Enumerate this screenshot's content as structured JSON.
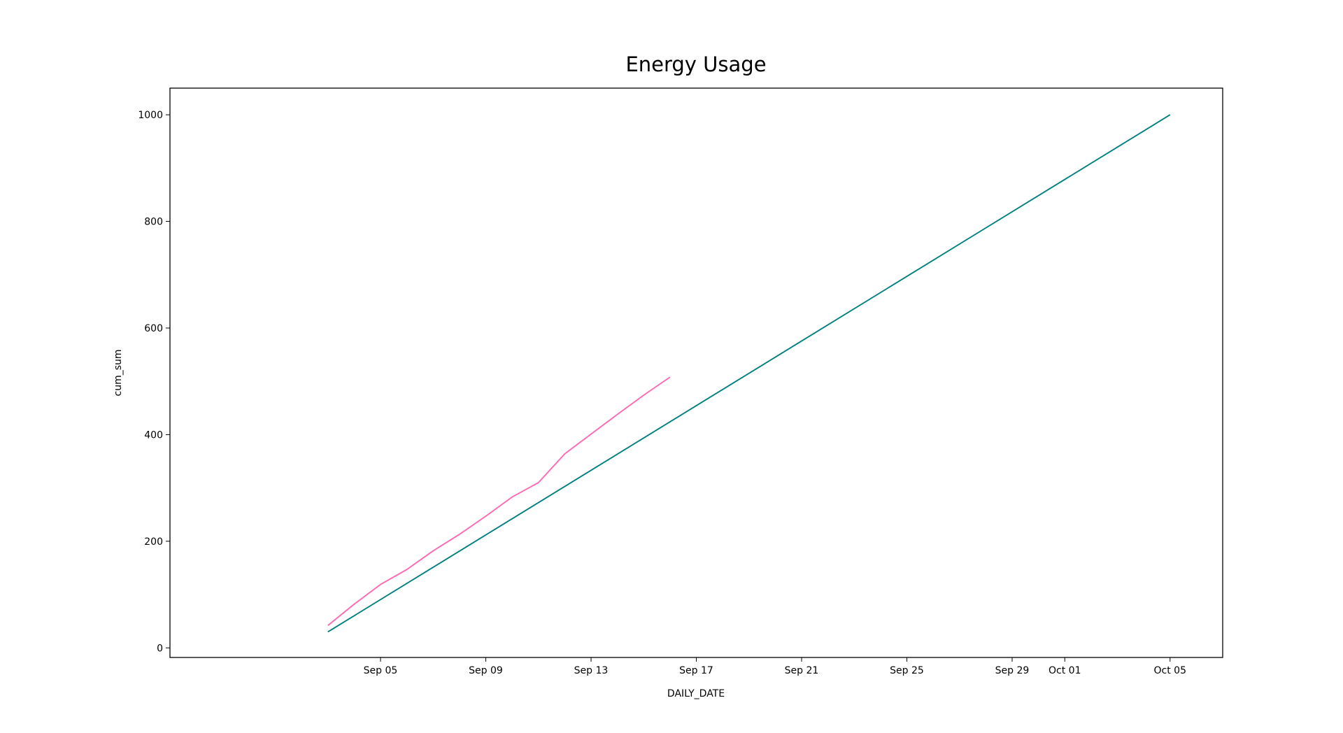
{
  "chart_data": {
    "type": "line",
    "title": "Energy Usage",
    "xlabel": "DAILY_DATE",
    "ylabel": "cum_sum",
    "xlim": [
      "2022-08-28",
      "2022-10-07"
    ],
    "ylim": [
      -18,
      1050
    ],
    "x_ticks": [
      {
        "date": "2022-09-05",
        "label": "Sep 05"
      },
      {
        "date": "2022-09-09",
        "label": "Sep 09"
      },
      {
        "date": "2022-09-13",
        "label": "Sep 13"
      },
      {
        "date": "2022-09-17",
        "label": "Sep 17"
      },
      {
        "date": "2022-09-21",
        "label": "Sep 21"
      },
      {
        "date": "2022-09-25",
        "label": "Sep 25"
      },
      {
        "date": "2022-09-29",
        "label": "Sep 29"
      },
      {
        "date": "2022-10-01",
        "label": "Oct 01"
      },
      {
        "date": "2022-10-05",
        "label": "Oct 05"
      }
    ],
    "y_ticks": [
      0,
      200,
      400,
      600,
      800,
      1000
    ],
    "grid": false,
    "legend": "none",
    "series": [
      {
        "color": "#ff69b4",
        "points": [
          {
            "x": "2022-09-03",
            "y": 42
          },
          {
            "x": "2022-09-04",
            "y": 82
          },
          {
            "x": "2022-09-05",
            "y": 119
          },
          {
            "x": "2022-09-06",
            "y": 147
          },
          {
            "x": "2022-09-07",
            "y": 182
          },
          {
            "x": "2022-09-08",
            "y": 213
          },
          {
            "x": "2022-09-09",
            "y": 247
          },
          {
            "x": "2022-09-10",
            "y": 283
          },
          {
            "x": "2022-09-11",
            "y": 310
          },
          {
            "x": "2022-09-12",
            "y": 364
          },
          {
            "x": "2022-09-13",
            "y": 401
          },
          {
            "x": "2022-09-14",
            "y": 438
          },
          {
            "x": "2022-09-15",
            "y": 474
          },
          {
            "x": "2022-09-16",
            "y": 508
          }
        ]
      },
      {
        "color": "#008080",
        "points": [
          {
            "x": "2022-09-03",
            "y": 30
          },
          {
            "x": "2022-10-05",
            "y": 1000
          }
        ]
      }
    ]
  }
}
